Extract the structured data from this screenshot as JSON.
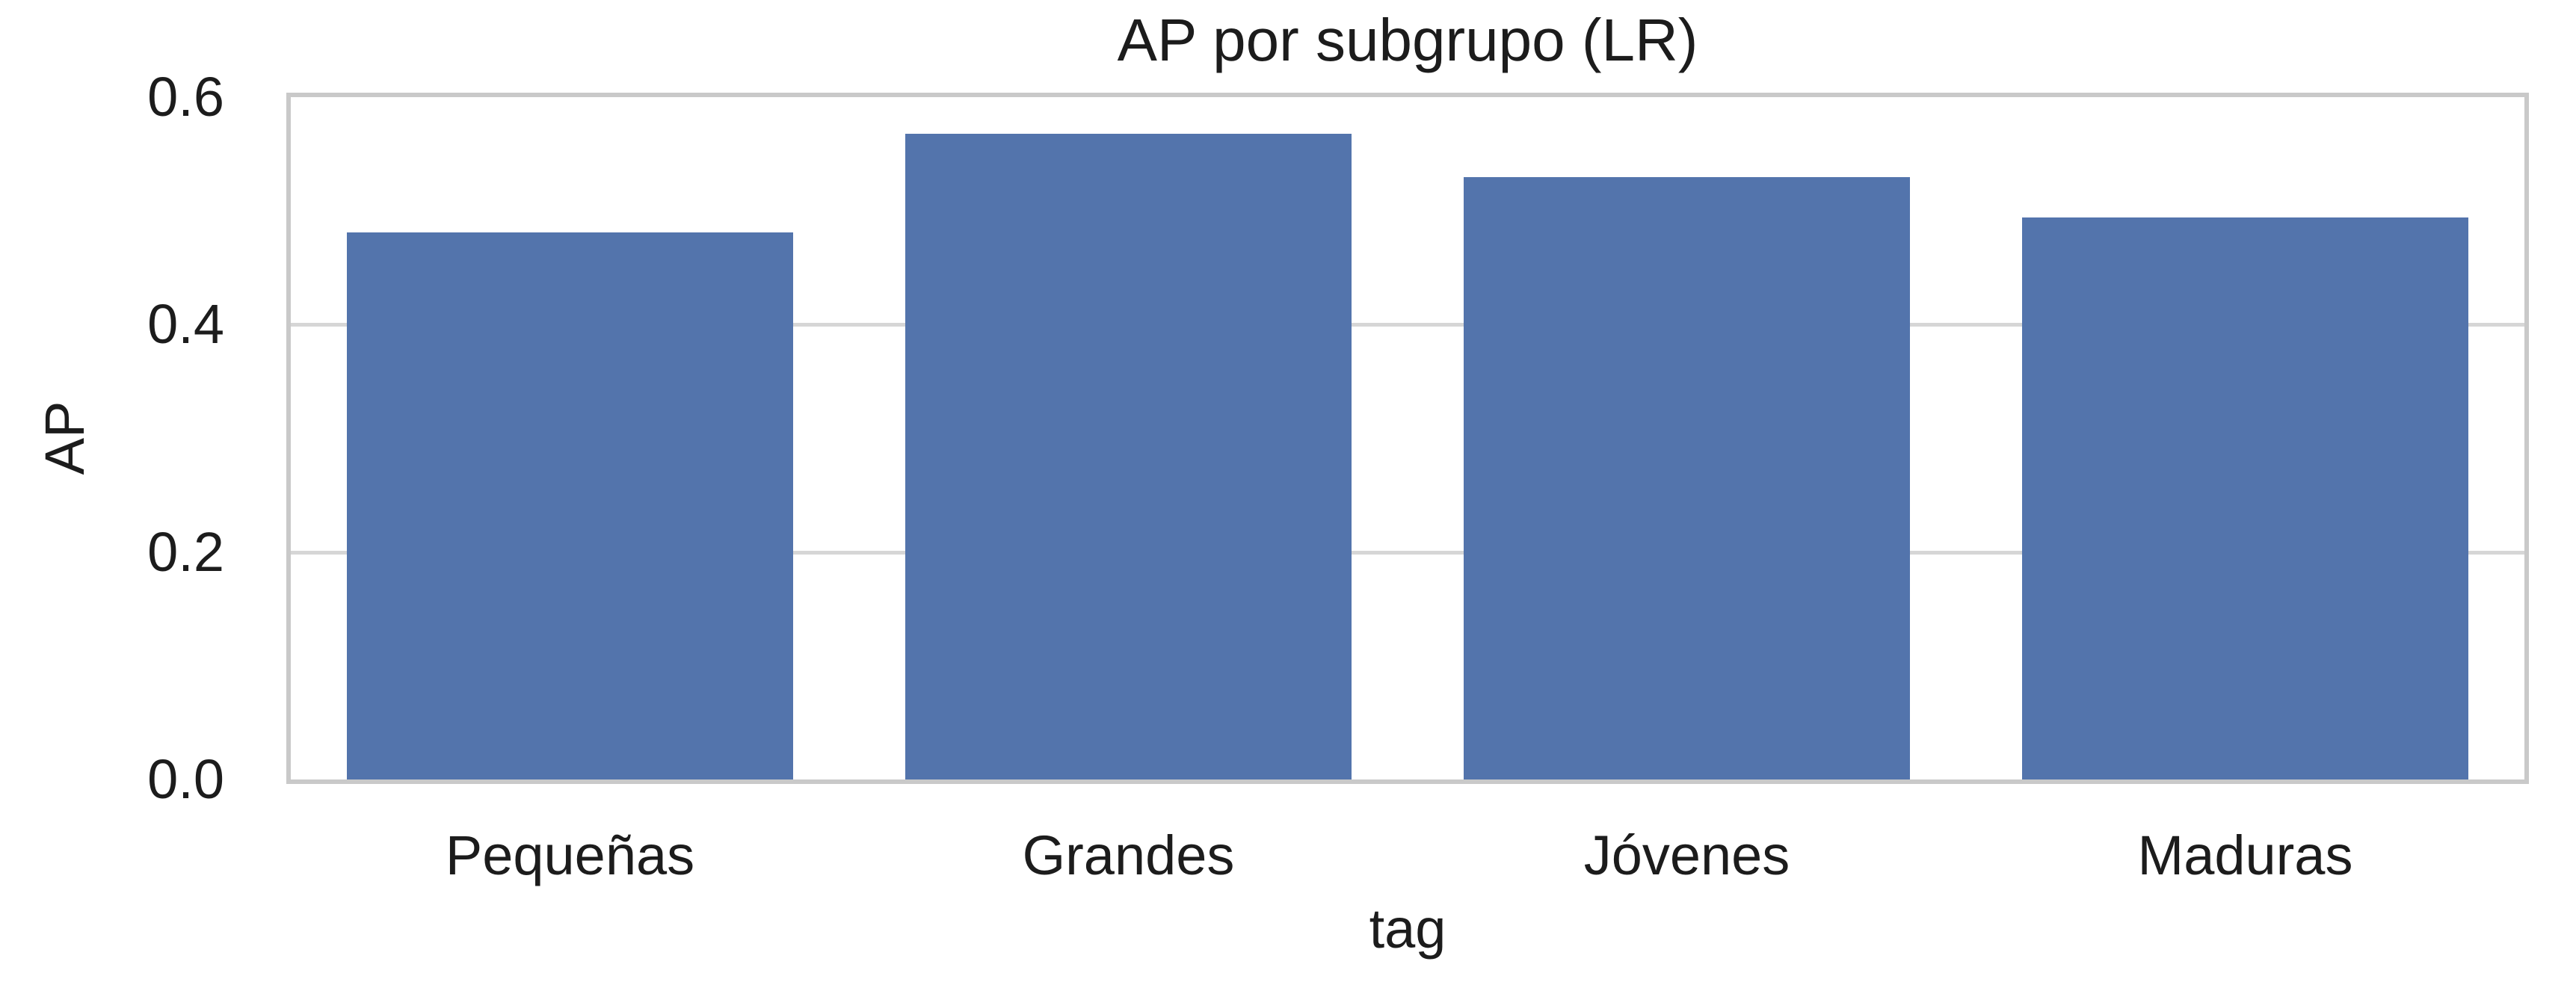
{
  "chart_data": {
    "type": "bar",
    "title": "AP por subgrupo (LR)",
    "xlabel": "tag",
    "ylabel": "AP",
    "categories": [
      "Pequeñas",
      "Grandes",
      "Jóvenes",
      "Maduras"
    ],
    "values": [
      0.481,
      0.568,
      0.53,
      0.494
    ],
    "ylim": [
      0,
      0.6
    ],
    "yticks": [
      0.0,
      0.2,
      0.4,
      0.6
    ],
    "ytick_labels": [
      "0.0",
      "0.2",
      "0.4",
      "0.6"
    ],
    "grid": "horizontal gridlines at y ticks, drawn behind bars",
    "legend": "none",
    "bar_width_fraction": 0.8
  },
  "style": {
    "bar_color": "#5374ac",
    "grid_color": "#d6d6d6",
    "spine_color": "#c9c9c9",
    "text_color": "#1c1c1c",
    "background": "#ffffff"
  }
}
